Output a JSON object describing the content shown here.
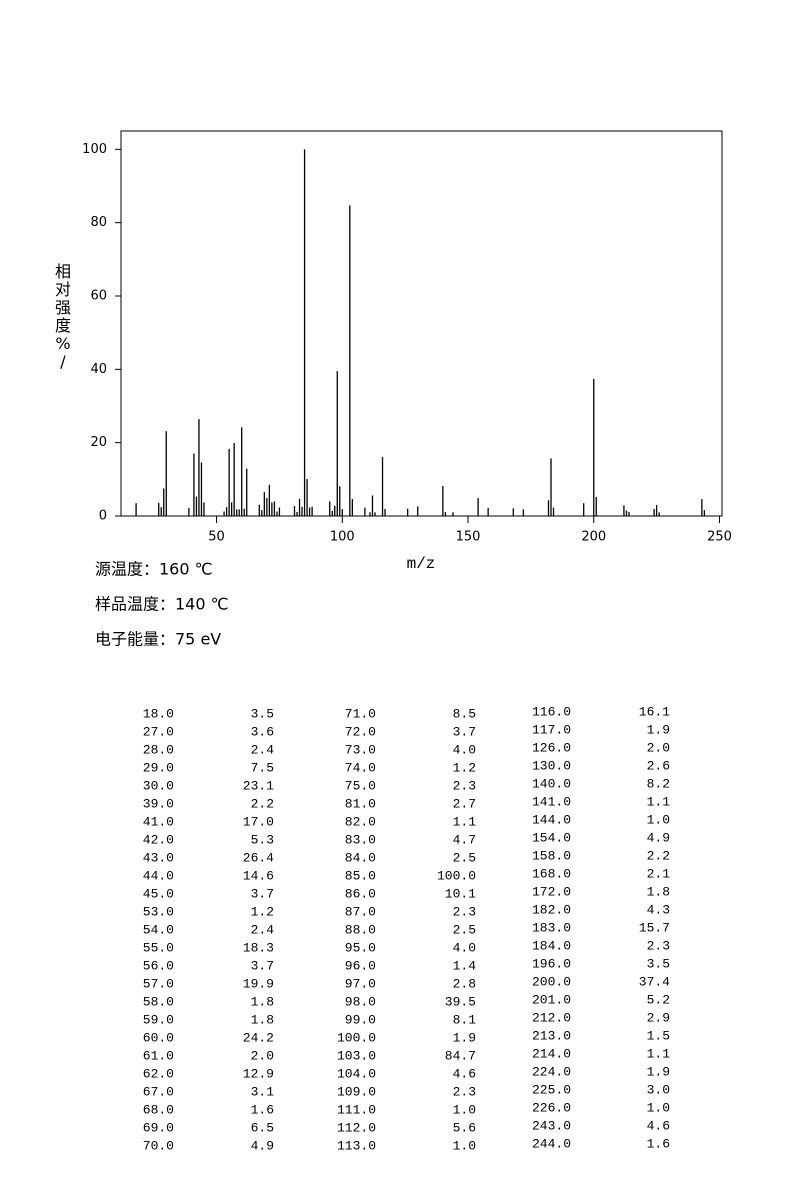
{
  "chart_data": {
    "type": "bar",
    "y_label": "相对强度%/",
    "x_label": "m/z",
    "x": [
      18,
      27,
      28,
      29,
      30,
      39,
      41,
      42,
      43,
      44,
      45,
      53,
      54,
      55,
      56,
      57,
      58,
      59,
      60,
      61,
      62,
      67,
      68,
      69,
      70,
      71,
      72,
      73,
      74,
      75,
      81,
      82,
      83,
      84,
      85,
      86,
      87,
      88,
      95,
      96,
      97,
      98,
      99,
      100,
      103,
      104,
      109,
      111,
      112,
      113,
      116,
      117,
      126,
      130,
      140,
      141,
      144,
      154,
      158,
      168,
      172,
      182,
      183,
      184,
      196,
      200,
      201,
      212,
      213,
      214,
      224,
      225,
      226,
      243,
      244
    ],
    "values": [
      3.5,
      3.6,
      2.4,
      7.5,
      23.1,
      2.2,
      17.0,
      5.3,
      26.4,
      14.6,
      3.7,
      1.2,
      2.4,
      18.3,
      3.7,
      19.9,
      1.8,
      1.8,
      24.2,
      2.0,
      12.9,
      3.1,
      1.6,
      6.5,
      4.9,
      8.5,
      3.7,
      4.0,
      1.2,
      2.3,
      2.7,
      1.1,
      4.7,
      2.5,
      100.0,
      10.1,
      2.3,
      2.5,
      4.0,
      1.4,
      2.8,
      39.5,
      8.1,
      1.9,
      84.7,
      4.6,
      2.3,
      1.0,
      5.6,
      1.0,
      16.1,
      1.9,
      2.0,
      2.6,
      8.2,
      1.1,
      1.0,
      4.9,
      2.2,
      2.1,
      1.8,
      4.3,
      15.7,
      2.3,
      3.5,
      37.4,
      5.2,
      2.9,
      1.5,
      1.1,
      1.9,
      3.0,
      1.0,
      4.6,
      1.6
    ],
    "color": "#000000",
    "xlim": [
      12,
      251
    ],
    "xticks": [
      50,
      100,
      150,
      200,
      250
    ],
    "ylim": [
      0,
      105
    ],
    "yticks": [
      0,
      20,
      40,
      60,
      80,
      100
    ]
  },
  "info": [
    "源温度：160 ℃",
    "样品温度：140 ℃",
    "电子能量：75 eV"
  ],
  "table": {
    "rows": [
      [
        "18.0",
        "3.5",
        "71.0",
        "8.5",
        "116.0",
        "16.1"
      ],
      [
        "27.0",
        "3.6",
        "72.0",
        "3.7",
        "117.0",
        "1.9"
      ],
      [
        "28.0",
        "2.4",
        "73.0",
        "4.0",
        "126.0",
        "2.0"
      ],
      [
        "29.0",
        "7.5",
        "74.0",
        "1.2",
        "130.0",
        "2.6"
      ],
      [
        "30.0",
        "23.1",
        "75.0",
        "2.3",
        "140.0",
        "8.2"
      ],
      [
        "39.0",
        "2.2",
        "81.0",
        "2.7",
        "141.0",
        "1.1"
      ],
      [
        "41.0",
        "17.0",
        "82.0",
        "1.1",
        "144.0",
        "1.0"
      ],
      [
        "42.0",
        "5.3",
        "83.0",
        "4.7",
        "154.0",
        "4.9"
      ],
      [
        "43.0",
        "26.4",
        "84.0",
        "2.5",
        "158.0",
        "2.2"
      ],
      [
        "44.0",
        "14.6",
        "85.0",
        "100.0",
        "168.0",
        "2.1"
      ],
      [
        "45.0",
        "3.7",
        "86.0",
        "10.1",
        "172.0",
        "1.8"
      ],
      [
        "53.0",
        "1.2",
        "87.0",
        "2.3",
        "182.0",
        "4.3"
      ],
      [
        "54.0",
        "2.4",
        "88.0",
        "2.5",
        "183.0",
        "15.7"
      ],
      [
        "55.0",
        "18.3",
        "95.0",
        "4.0",
        "184.0",
        "2.3"
      ],
      [
        "56.0",
        "3.7",
        "96.0",
        "1.4",
        "196.0",
        "3.5"
      ],
      [
        "57.0",
        "19.9",
        "97.0",
        "2.8",
        "200.0",
        "37.4"
      ],
      [
        "58.0",
        "1.8",
        "98.0",
        "39.5",
        "201.0",
        "5.2"
      ],
      [
        "59.0",
        "1.8",
        "99.0",
        "8.1",
        "212.0",
        "2.9"
      ],
      [
        "60.0",
        "24.2",
        "100.0",
        "1.9",
        "213.0",
        "1.5"
      ],
      [
        "61.0",
        "2.0",
        "103.0",
        "84.7",
        "214.0",
        "1.1"
      ],
      [
        "62.0",
        "12.9",
        "104.0",
        "4.6",
        "224.0",
        "1.9"
      ],
      [
        "67.0",
        "3.1",
        "109.0",
        "2.3",
        "225.0",
        "3.0"
      ],
      [
        "68.0",
        "1.6",
        "111.0",
        "1.0",
        "226.0",
        "1.0"
      ],
      [
        "69.0",
        "6.5",
        "112.0",
        "5.6",
        "243.0",
        "4.6"
      ],
      [
        "70.0",
        "4.9",
        "113.0",
        "1.0",
        "244.0",
        "1.6"
      ]
    ]
  }
}
